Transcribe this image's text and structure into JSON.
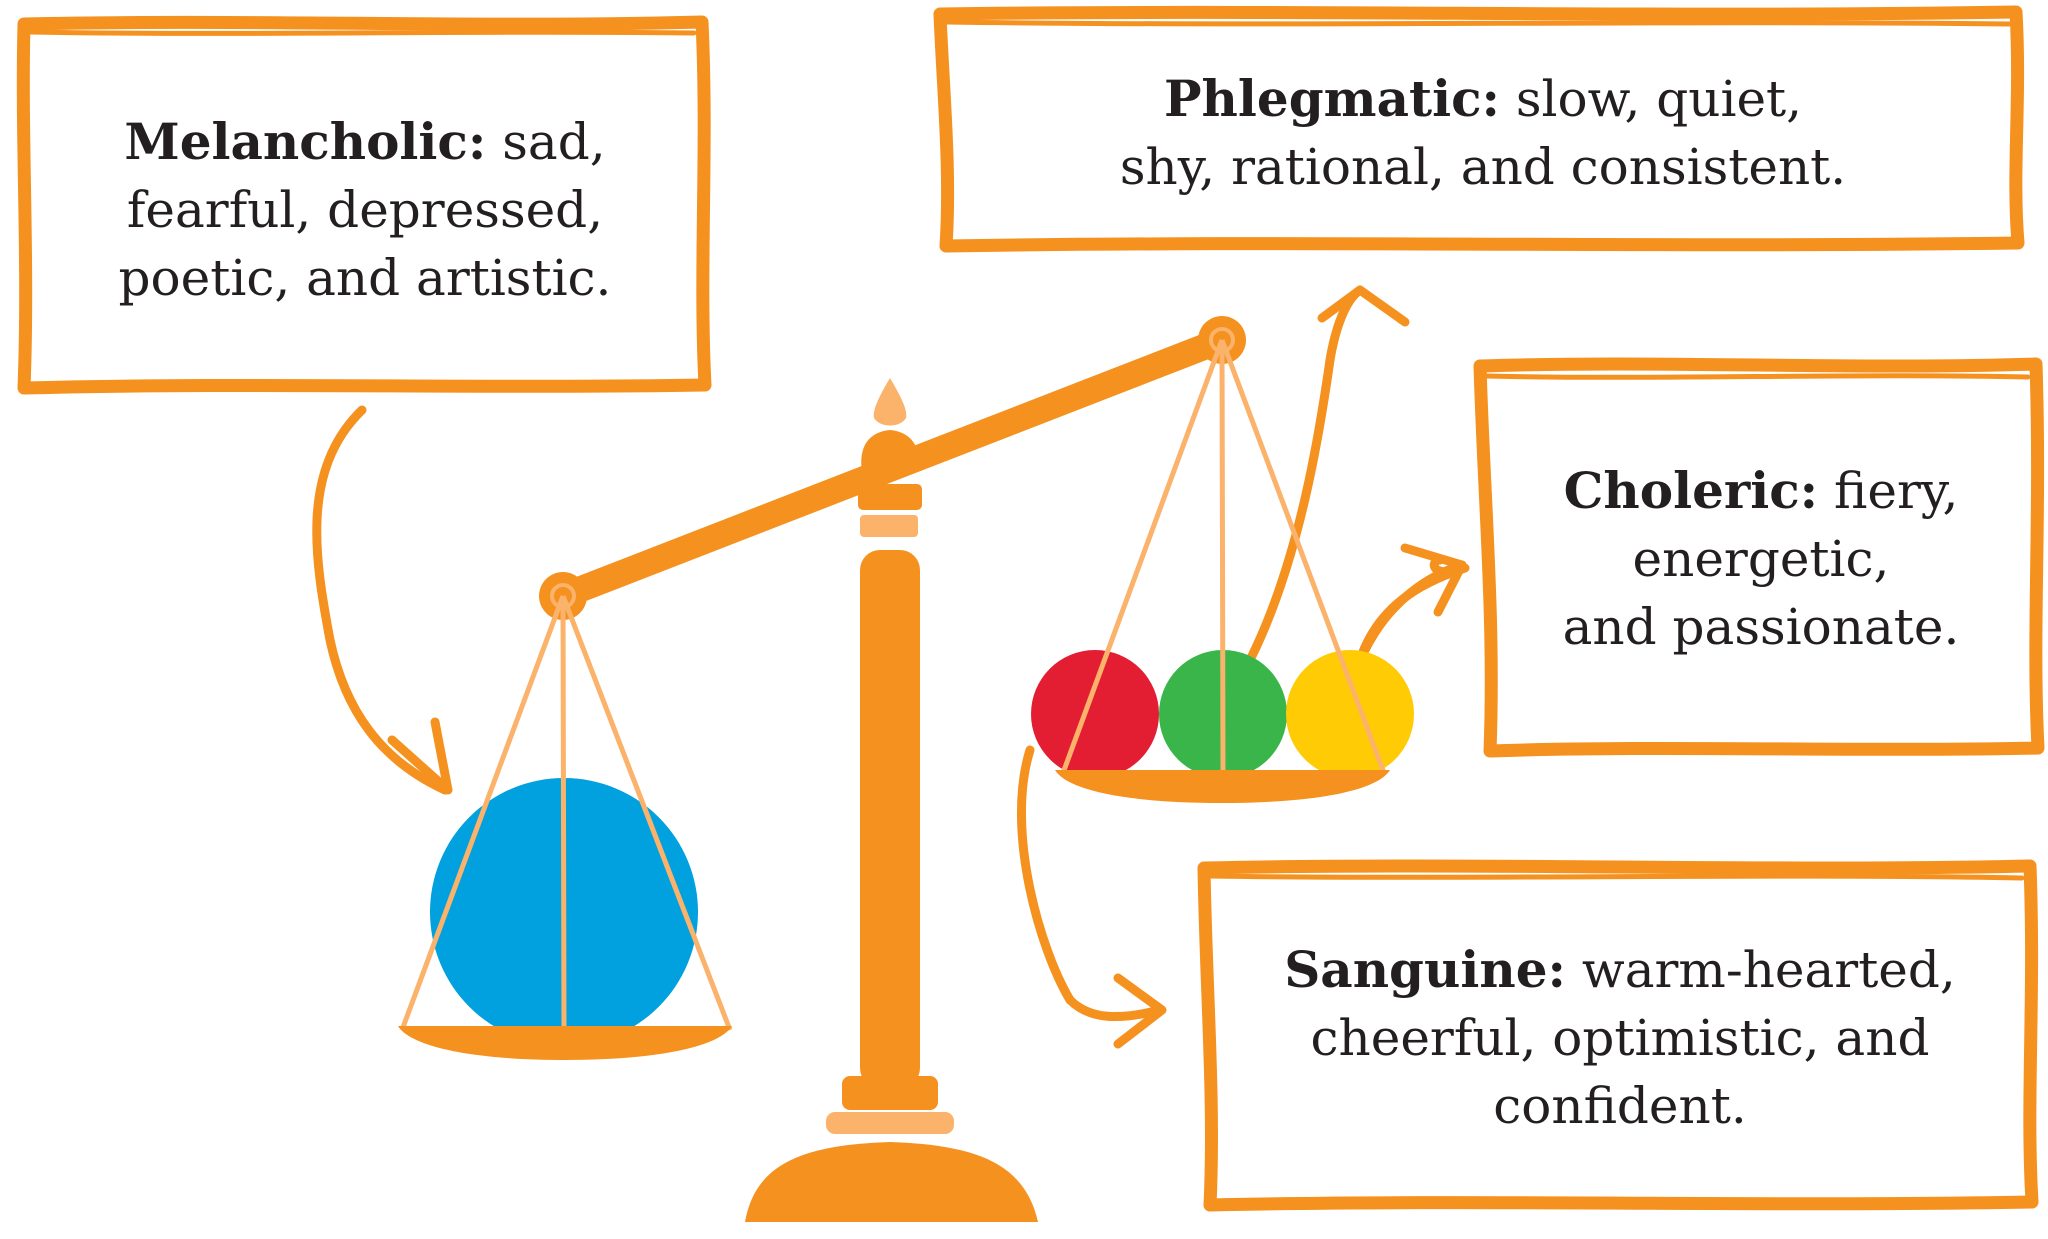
{
  "colors": {
    "frame": "#f5911e",
    "scale": "#f5911e",
    "scale_light": "#fbb26b",
    "ink": "#231f20",
    "melancholic_ball": "#00a1de",
    "red_ball": "#e31e32",
    "green_ball": "#3ab54a",
    "yellow_ball": "#ffcb05"
  },
  "temperaments": {
    "melancholic": {
      "term": "Melancholic:",
      "lines": [
        " sad,",
        "fearful, depressed,",
        "poetic, and artistic."
      ]
    },
    "phlegmatic": {
      "term": "Phlegmatic:",
      "lines": [
        " slow, quiet,",
        "shy, rational, and consistent."
      ]
    },
    "choleric": {
      "term": "Choleric:",
      "lines": [
        " fiery,",
        "energetic,",
        "and passionate."
      ]
    },
    "sanguine": {
      "term": "Sanguine:",
      "lines": [
        " warm-hearted,",
        "cheerful, optimistic, and",
        "confident."
      ]
    }
  }
}
